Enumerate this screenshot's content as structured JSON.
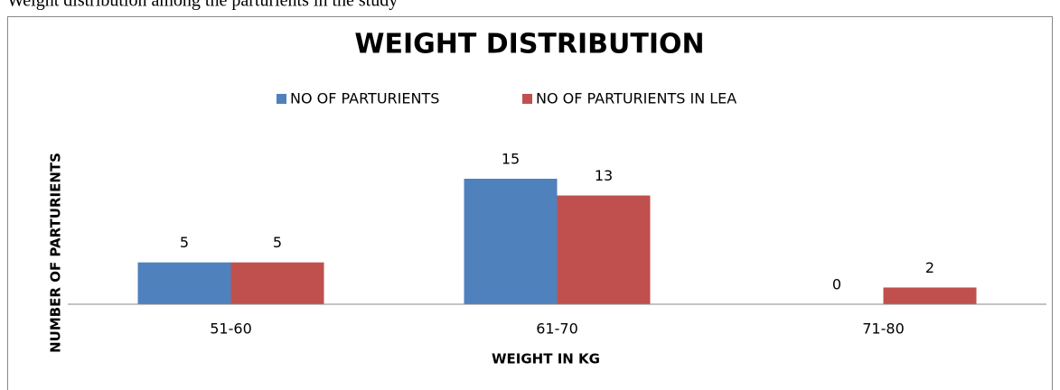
{
  "caption": "Weight distribution among the parturients in the study",
  "chart_data": {
    "type": "bar",
    "title": "WEIGHT DISTRIBUTION",
    "x_label": "WEIGHT IN KG",
    "y_label": "NUMBER OF PARTURIENTS",
    "categories": [
      "51-60",
      "61-70",
      "71-80"
    ],
    "series": [
      {
        "name": "NO OF PARTURIENTS",
        "color": "#4f81bd",
        "values": [
          5,
          15,
          0
        ]
      },
      {
        "name": "NO OF PARTURIENTS IN LEA",
        "color": "#c0504d",
        "values": [
          5,
          13,
          2
        ]
      }
    ],
    "ylim": [
      0,
      15
    ],
    "grid": false,
    "legend": "top"
  }
}
